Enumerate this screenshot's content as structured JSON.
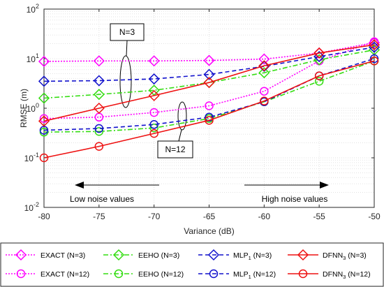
{
  "chart_data": {
    "type": "line",
    "xlabel": "Variance (dB)",
    "ylabel": "RMSE (m)",
    "xlim": [
      -80,
      -50
    ],
    "ylim": [
      0.01,
      100
    ],
    "yscale": "log",
    "grid": true,
    "x_ticks": [
      "-80",
      "-75",
      "-70",
      "-65",
      "-60",
      "-55",
      "-50"
    ],
    "y_ticks": [
      {
        "base": "10",
        "exp": "-2"
      },
      {
        "base": "10",
        "exp": "-1"
      },
      {
        "base": "10",
        "exp": "0"
      },
      {
        "base": "10",
        "exp": "1"
      },
      {
        "base": "10",
        "exp": "2"
      }
    ],
    "x": [
      -80,
      -75,
      -70,
      -65,
      -60,
      -55,
      -50
    ],
    "series": [
      {
        "name": "EXACT (N=3)",
        "color": "#ff00ff",
        "dash": "dotted",
        "marker": "diamond",
        "values": [
          8.8,
          9.0,
          9.0,
          9.2,
          9.8,
          13.0,
          21.0
        ]
      },
      {
        "name": "EXACT (N=12)",
        "color": "#ff00ff",
        "dash": "dotted",
        "marker": "circle",
        "values": [
          0.62,
          0.66,
          0.82,
          1.12,
          2.2,
          9.0,
          22.0
        ]
      },
      {
        "name": "EEHO (N=3)",
        "color": "#33dd11",
        "dash": "dashdot",
        "marker": "diamond",
        "values": [
          1.6,
          1.9,
          2.3,
          3.3,
          5.2,
          9.5,
          15.0
        ]
      },
      {
        "name": "EEHO (N=12)",
        "color": "#33dd11",
        "dash": "dashdot",
        "marker": "circle",
        "values": [
          0.33,
          0.34,
          0.4,
          0.62,
          1.35,
          3.5,
          9.0
        ]
      },
      {
        "name": "MLP1 (N=3)",
        "color": "#1111cc",
        "dash": "dashed",
        "marker": "diamond",
        "values": [
          3.5,
          3.6,
          3.9,
          4.8,
          7.0,
          11.0,
          17.0
        ]
      },
      {
        "name": "MLP1 (N=12)",
        "color": "#1111cc",
        "dash": "dashed",
        "marker": "circle",
        "values": [
          0.36,
          0.39,
          0.47,
          0.66,
          1.35,
          4.5,
          10.0
        ]
      },
      {
        "name": "DFNN3 (N=3)",
        "color": "#ee1111",
        "dash": "solid",
        "marker": "diamond",
        "values": [
          0.55,
          1.0,
          1.8,
          3.3,
          7.2,
          13.0,
          19.0
        ]
      },
      {
        "name": "DFNN3 (N=12)",
        "color": "#ee1111",
        "dash": "solid",
        "marker": "circle",
        "values": [
          0.1,
          0.17,
          0.31,
          0.57,
          1.4,
          4.5,
          9.0
        ]
      }
    ],
    "annotations": {
      "n3": "N=3",
      "n12": "N=12",
      "low": "Low noise values",
      "high": "High noise values"
    },
    "legend": {
      "placement": "bottom",
      "entries": [
        {
          "main": "EXACT (N=3)",
          "sub": "",
          "tail": ""
        },
        {
          "main": "EEHO (N=3)",
          "sub": "",
          "tail": ""
        },
        {
          "main": "MLP",
          "sub": "1",
          "tail": " (N=3)"
        },
        {
          "main": "DFNN",
          "sub": "3",
          "tail": " (N=3)"
        },
        {
          "main": "EXACT (N=12)",
          "sub": "",
          "tail": ""
        },
        {
          "main": "EEHO (N=12)",
          "sub": "",
          "tail": ""
        },
        {
          "main": "MLP",
          "sub": "1",
          "tail": " (N=12)"
        },
        {
          "main": "DFNN",
          "sub": "3",
          "tail": " (N=12)"
        }
      ]
    }
  }
}
